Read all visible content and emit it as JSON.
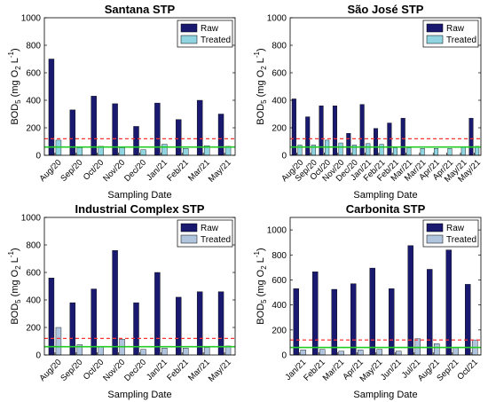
{
  "colors": {
    "raw": "#191970",
    "treated_sj": "#8fd4e0",
    "treated_ic": "#b0c4de",
    "green_line": "#22cc22",
    "red_dash": "#ff3333"
  },
  "chart_data": [
    {
      "type": "bar",
      "title": "Santana STP",
      "xlabel": "Sampling Date",
      "ylabel": "BOD5 (mg O2 L-1)",
      "ylim": [
        0,
        1000
      ],
      "yticks": [
        0,
        200,
        400,
        600,
        800,
        1000
      ],
      "legend": [
        "Raw",
        "Treated"
      ],
      "legend_position": "top-right",
      "categories": [
        "Aug/20",
        "Sep/20",
        "Oct/20",
        "Nov/20",
        "Dec/20",
        "Jan/21",
        "Feb/21",
        "Mar/21",
        "May/21"
      ],
      "series": [
        {
          "name": "Raw",
          "values": [
            700,
            330,
            430,
            375,
            210,
            380,
            260,
            400,
            300
          ]
        },
        {
          "name": "Treated",
          "values": [
            110,
            55,
            65,
            55,
            40,
            80,
            50,
            70,
            65
          ]
        }
      ],
      "reference_lines": [
        60,
        120
      ]
    },
    {
      "type": "bar",
      "title": "São José STP",
      "xlabel": "Sampling Date",
      "ylabel": "BOD5 (mg O2 L-1)",
      "ylim": [
        0,
        1000
      ],
      "yticks": [
        0,
        200,
        400,
        600,
        800,
        1000
      ],
      "legend": [
        "Raw",
        "Treated"
      ],
      "legend_position": "top-right",
      "categories": [
        "Aug/20",
        "Sep/20",
        "Oct/20",
        "Nov/20",
        "Dec/20",
        "Jan/21",
        "Feb/21",
        "Feb/21",
        "Mar/21",
        "Mar/21",
        "Apr/21",
        "Apr/21",
        "May/21",
        "May/21"
      ],
      "series": [
        {
          "name": "Raw",
          "values": [
            410,
            280,
            360,
            360,
            160,
            370,
            195,
            235,
            270,
            0,
            0,
            0,
            0,
            270
          ]
        },
        {
          "name": "Treated",
          "values": [
            75,
            75,
            110,
            90,
            75,
            85,
            80,
            55,
            55,
            50,
            50,
            50,
            60,
            65
          ]
        }
      ],
      "reference_lines": [
        60,
        120
      ]
    },
    {
      "type": "bar",
      "title": "Industrial Complex STP",
      "xlabel": "Sampling Date",
      "ylabel": "BOD5 (mg O2 L-1)",
      "ylim": [
        0,
        1000
      ],
      "yticks": [
        0,
        200,
        400,
        600,
        800,
        1000
      ],
      "legend": [
        "Raw",
        "Treated"
      ],
      "legend_position": "top-right",
      "categories": [
        "Aug/20",
        "Sep/20",
        "Oct/20",
        "Nov/20",
        "Dec/20",
        "Jan/21",
        "Feb/21",
        "Mar/21",
        "May/21"
      ],
      "series": [
        {
          "name": "Raw",
          "values": [
            560,
            380,
            480,
            760,
            380,
            600,
            420,
            460,
            460
          ]
        },
        {
          "name": "Treated",
          "values": [
            200,
            75,
            60,
            115,
            40,
            50,
            50,
            55,
            65
          ]
        }
      ],
      "reference_lines": [
        60,
        120
      ]
    },
    {
      "type": "bar",
      "title": "Carbonita STP",
      "xlabel": "Sampling Date",
      "ylabel": "BOD5 (mg O2 L-1)",
      "ylim": [
        0,
        1100
      ],
      "yticks": [
        0,
        200,
        400,
        600,
        800,
        1000
      ],
      "legend": [
        "Raw",
        "Treated"
      ],
      "legend_position": "top-right",
      "categories": [
        "Jan/21",
        "Feb/21",
        "Mar/21",
        "Apr/21",
        "May/21",
        "Jun/21",
        "Jul/21",
        "Aug/21",
        "Sep/21",
        "Oct/21"
      ],
      "series": [
        {
          "name": "Raw",
          "values": [
            530,
            665,
            525,
            570,
            695,
            530,
            875,
            685,
            840,
            565
          ]
        },
        {
          "name": "Treated",
          "values": [
            40,
            45,
            30,
            40,
            45,
            30,
            130,
            90,
            60,
            120
          ]
        }
      ],
      "reference_lines": [
        60,
        120
      ]
    }
  ]
}
